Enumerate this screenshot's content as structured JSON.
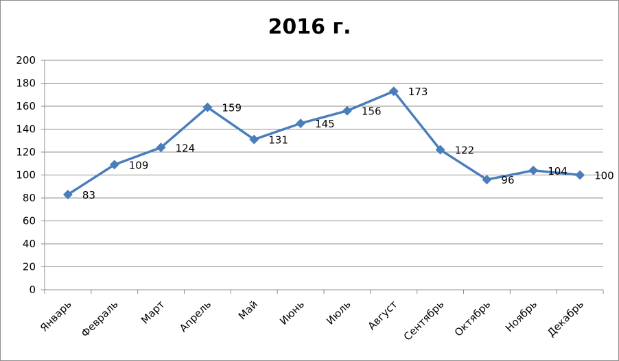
{
  "chart_data": {
    "type": "line",
    "title": "2016 г.",
    "categories": [
      "Январь",
      "Февраль",
      "Март",
      "Апрель",
      "Май",
      "Июнь",
      "Июль",
      "Август",
      "Сентябрь",
      "Октябрь",
      "Ноябрь",
      "Декабрь"
    ],
    "series": [
      {
        "values": [
          83,
          109,
          124,
          159,
          131,
          145,
          156,
          173,
          122,
          96,
          104,
          100
        ]
      }
    ],
    "ylim": [
      0,
      200
    ],
    "yticks": [
      0,
      20,
      40,
      60,
      80,
      100,
      120,
      140,
      160,
      180,
      200
    ],
    "grid": true,
    "legend": "none",
    "line_color": "#4a7ebb",
    "marker": "diamond"
  }
}
